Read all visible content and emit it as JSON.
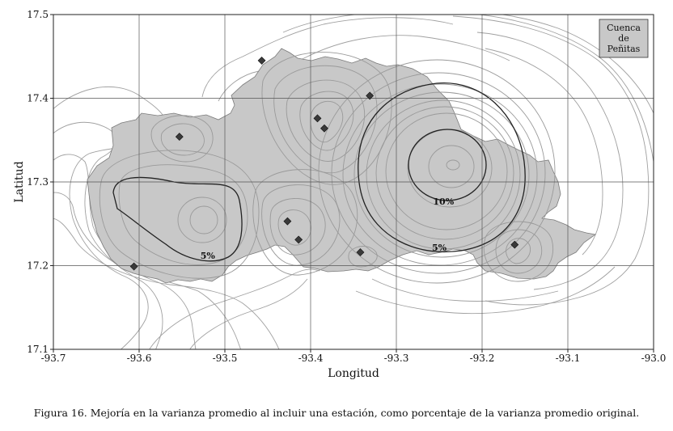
{
  "figure": {
    "caption": "Figura 16. Mejoría en la varianza promedio al incluir una estación, como porcentaje de la varianza promedio original."
  },
  "map": {
    "xlabel": "Longitud",
    "ylabel": "Latitud",
    "xlim": [
      -93.7,
      -93.0
    ],
    "ylim": [
      17.1,
      17.5
    ],
    "x_ticks": [
      -93.7,
      -93.6,
      -93.5,
      -93.4,
      -93.3,
      -93.2,
      -93.1,
      -93.0
    ],
    "y_ticks": [
      17.1,
      17.2,
      17.3,
      17.4,
      17.5
    ],
    "x_tick_labels": [
      "-93.7",
      "-93.6",
      "-93.5",
      "-93.4",
      "-93.3",
      "-93.2",
      "-93.1",
      "-93.0"
    ],
    "y_tick_labels": [
      "17.1",
      "17.2",
      "17.3",
      "17.4",
      "17.5"
    ],
    "grid": true,
    "legend": {
      "lines": [
        "Cuenca",
        "de",
        "Peñitas"
      ],
      "placement": "top-right"
    },
    "basin_fill": "#c8c8c8",
    "contour_color": "#a0a0a0",
    "highlight_contour_color": "#222222",
    "contour_labels": [
      {
        "text": "5%",
        "lon": -93.52,
        "lat": 17.208
      },
      {
        "text": "10%",
        "lon": -93.245,
        "lat": 17.273
      },
      {
        "text": "5%",
        "lon": -93.25,
        "lat": 17.218
      }
    ],
    "stations": [
      {
        "lon": -93.457,
        "lat": 17.445
      },
      {
        "lon": -93.331,
        "lat": 17.403
      },
      {
        "lon": -93.392,
        "lat": 17.376
      },
      {
        "lon": -93.384,
        "lat": 17.364
      },
      {
        "lon": -93.553,
        "lat": 17.354
      },
      {
        "lon": -93.427,
        "lat": 17.253
      },
      {
        "lon": -93.414,
        "lat": 17.231
      },
      {
        "lon": -93.342,
        "lat": 17.216
      },
      {
        "lon": -93.162,
        "lat": 17.225
      },
      {
        "lon": -93.606,
        "lat": 17.199
      }
    ]
  }
}
